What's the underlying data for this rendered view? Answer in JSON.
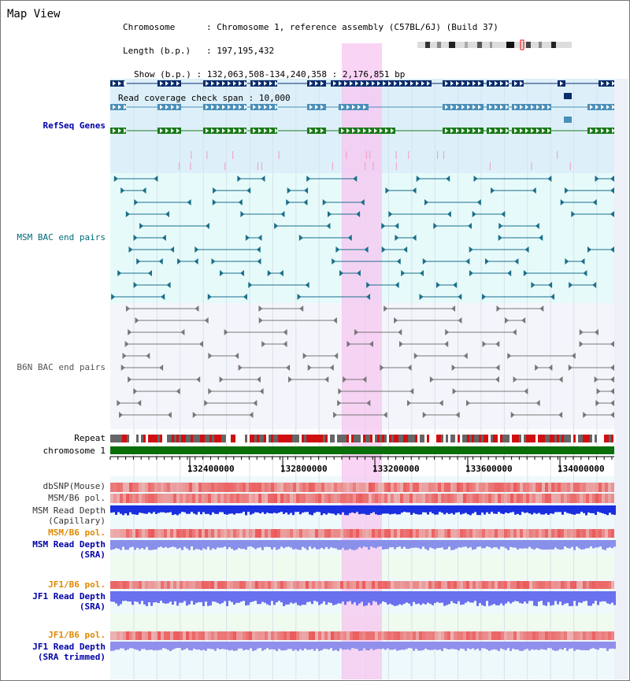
{
  "app": {
    "title": "Map View"
  },
  "info": {
    "chromosome_label": "Chromosome",
    "chromosome_value": "Chromosome 1, reference assembly (C57BL/6J) (Build 37)",
    "length_label": "Length (b.p.)",
    "length_value": "197,195,432",
    "show_label": "Show (b.p.)",
    "show_value": "132,063,508-134,240,358 : 2,176,851 bp",
    "coverage_label": "Read coverage check span",
    "coverage_value": "10,000"
  },
  "tracks": {
    "refseq": "RefSeq Genes",
    "msm_bac": "MSM BAC end pairs",
    "b6n_bac": "B6N BAC end pairs",
    "repeat": "Repeat",
    "chromosome": "chromosome 1",
    "dbsnp": "dbSNP(Mouse)",
    "msm_b6_pol": "MSM/B6 pol.",
    "msm_depth_cap_1": "MSM Read Depth",
    "msm_depth_cap_2": "(Capillary)",
    "msm_b6_pol_sra": "MSM/B6 pol.",
    "msm_depth_sra_1": "MSM Read Depth",
    "msm_depth_sra_2": "(SRA)",
    "jf1_b6_pol": "JF1/B6 pol.",
    "jf1_depth_1": "JF1 Read Depth",
    "jf1_depth_2": "(SRA)",
    "jf1_b6_pol_trim": "JF1/B6 pol.",
    "jf1_trim_1": "JF1 Read Depth",
    "jf1_trim_2": "(SRA trimmed)"
  },
  "axis": {
    "ticks": [
      "132400000",
      "132800000",
      "133200000",
      "133600000",
      "134000000"
    ]
  },
  "colors": {
    "refseq_bg": "#ddf0fa",
    "msm_bg": "#e6fafa",
    "b6n_bg": "#f4f5fa",
    "highlight": "#f7c6f0",
    "gene_navy": "#0a2d6b",
    "gene_steel": "#4a8fb8",
    "gene_green": "#1a7a1a",
    "chrom_green": "#0a6e0a"
  }
}
